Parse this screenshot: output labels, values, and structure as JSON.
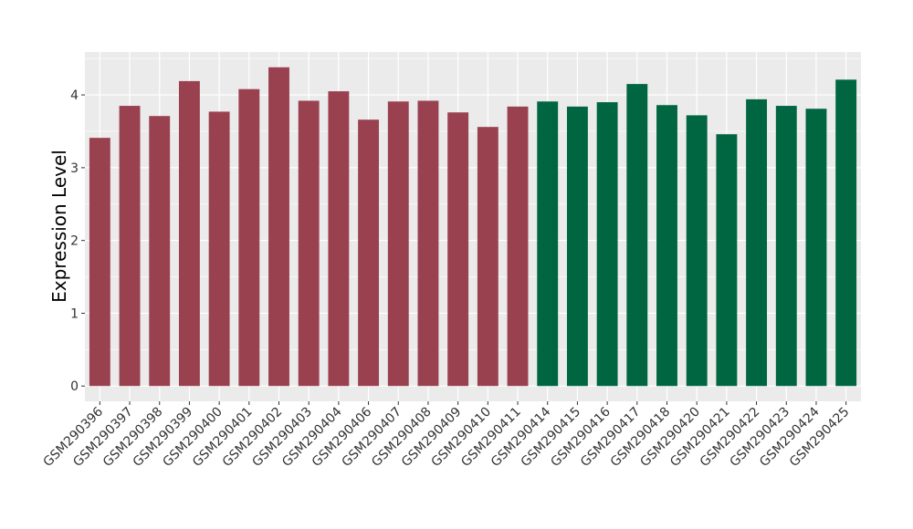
{
  "chart_data": {
    "type": "bar",
    "title": "",
    "xlabel": "",
    "ylabel": "Expression Level",
    "ylim": [
      -0.21,
      4.59
    ],
    "yticks": [
      0,
      1,
      2,
      3,
      4
    ],
    "grid": true,
    "legend": "none",
    "categories": [
      "GSM290396",
      "GSM290397",
      "GSM290398",
      "GSM290399",
      "GSM290400",
      "GSM290401",
      "GSM290402",
      "GSM290403",
      "GSM290404",
      "GSM290406",
      "GSM290407",
      "GSM290408",
      "GSM290409",
      "GSM290410",
      "GSM290411",
      "GSM290414",
      "GSM290415",
      "GSM290416",
      "GSM290417",
      "GSM290418",
      "GSM290420",
      "GSM290421",
      "GSM290422",
      "GSM290423",
      "GSM290424",
      "GSM290425"
    ],
    "values": [
      3.41,
      3.85,
      3.71,
      4.19,
      3.77,
      4.08,
      4.38,
      3.92,
      4.05,
      3.66,
      3.91,
      3.92,
      3.76,
      3.56,
      3.84,
      3.91,
      3.84,
      3.9,
      4.15,
      3.86,
      3.72,
      3.46,
      3.94,
      3.85,
      3.81,
      4.21
    ],
    "groups": [
      "A",
      "A",
      "A",
      "A",
      "A",
      "A",
      "A",
      "A",
      "A",
      "A",
      "A",
      "A",
      "A",
      "A",
      "A",
      "B",
      "B",
      "B",
      "B",
      "B",
      "B",
      "B",
      "B",
      "B",
      "B",
      "B"
    ],
    "colors": {
      "A": "#9A4150",
      "B": "#006642"
    },
    "panel_background": "#EBEBEB"
  }
}
